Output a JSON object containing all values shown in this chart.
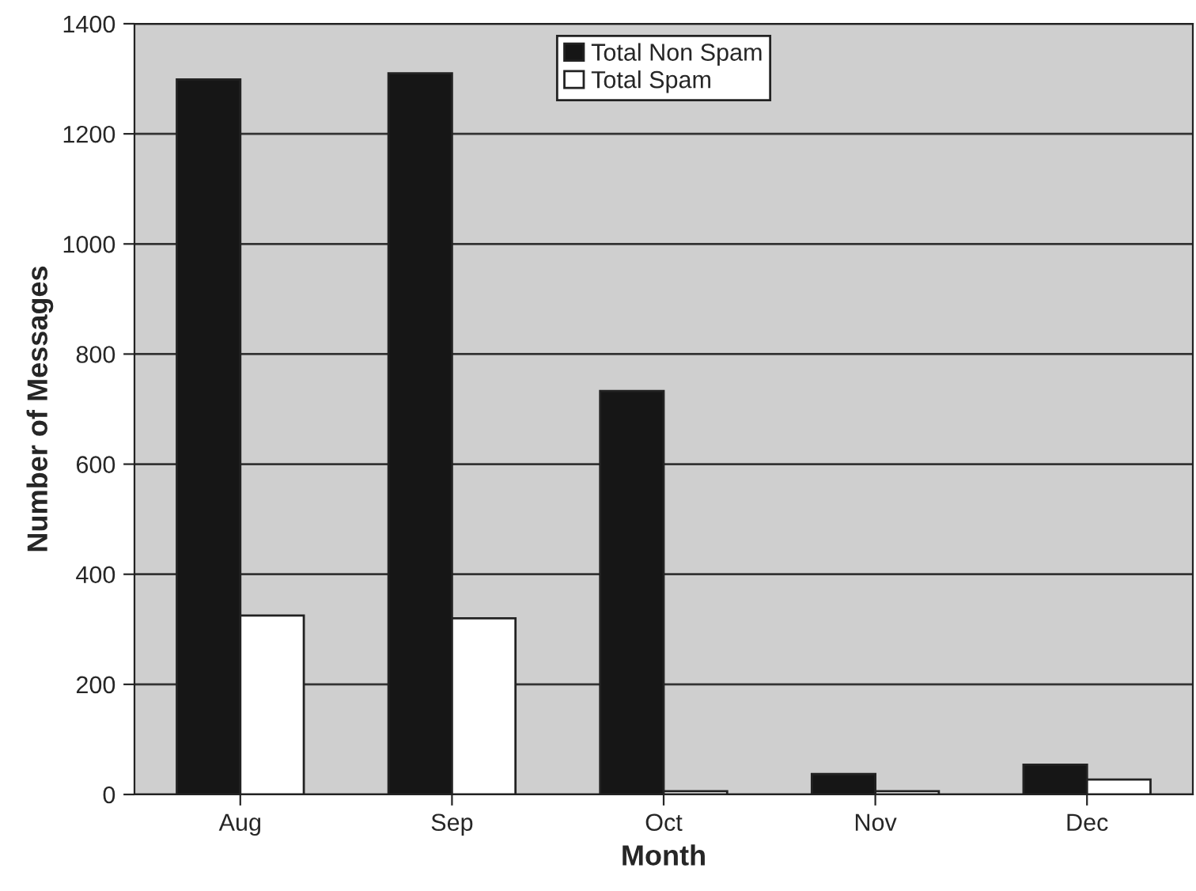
{
  "chart_data": {
    "type": "bar",
    "xlabel": "Month",
    "ylabel": "Number of Messages",
    "categories": [
      "Aug",
      "Sep",
      "Oct",
      "Nov",
      "Dec"
    ],
    "series": [
      {
        "name": "Total Non Spam",
        "color": "#161616",
        "values": [
          1299,
          1310,
          733,
          37,
          54
        ]
      },
      {
        "name": "Total Spam",
        "color": "#ffffff",
        "values": [
          325,
          320,
          6,
          6,
          27
        ]
      }
    ],
    "ylim": [
      0,
      1400
    ],
    "yticks": [
      0,
      200,
      400,
      600,
      800,
      1000,
      1200,
      1400
    ],
    "grid": "y",
    "legend": "top"
  }
}
